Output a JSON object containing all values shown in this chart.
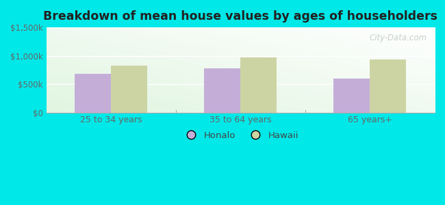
{
  "title": "Breakdown of mean house values by ages of householders",
  "categories": [
    "25 to 34 years",
    "35 to 64 years",
    "65 years+"
  ],
  "honalo_values": [
    680000,
    775000,
    600000
  ],
  "hawaii_values": [
    830000,
    970000,
    940000
  ],
  "honalo_color": "#c4aed8",
  "hawaii_color": "#cdd4a4",
  "background_outer": "#00e8e8",
  "ylim": [
    0,
    1500000
  ],
  "yticks": [
    0,
    500000,
    1000000,
    1500000
  ],
  "ytick_labels": [
    "$0",
    "$500k",
    "$1,000k",
    "$1,500k"
  ],
  "legend_labels": [
    "Honalo",
    "Hawaii"
  ],
  "bar_width": 0.28,
  "watermark": "City-Data.com",
  "grid_color": "#e0ece0",
  "separator_color": "#aaaaaa"
}
